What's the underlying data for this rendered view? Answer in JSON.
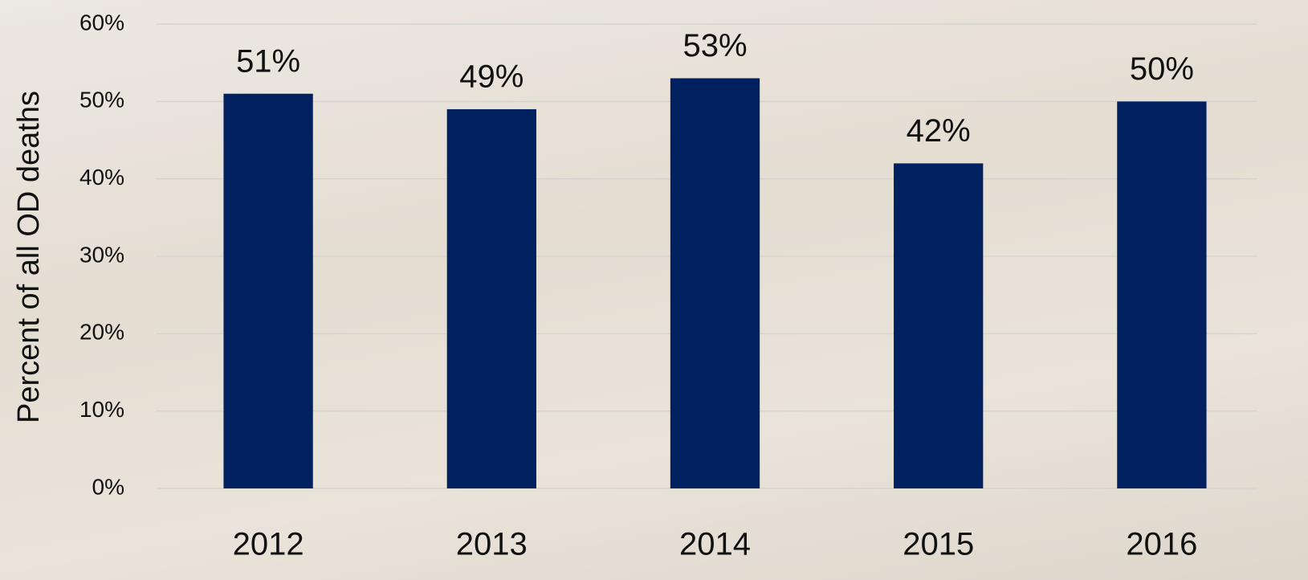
{
  "chart_data": {
    "type": "bar",
    "y_axis_label": "Percent of all OD deaths",
    "categories": [
      "2012",
      "2013",
      "2014",
      "2015",
      "2016"
    ],
    "values": [
      51,
      49,
      53,
      42,
      50
    ],
    "value_labels": [
      "51%",
      "49%",
      "53%",
      "42%",
      "50%"
    ],
    "color": "#002060",
    "ylim": [
      0,
      60
    ],
    "yticks": [
      {
        "value": 0,
        "label": "0%"
      },
      {
        "value": 10,
        "label": "10%"
      },
      {
        "value": 20,
        "label": "20%"
      },
      {
        "value": 30,
        "label": "30%"
      },
      {
        "value": 40,
        "label": "40%"
      },
      {
        "value": 50,
        "label": "50%"
      },
      {
        "value": 60,
        "label": "60%"
      }
    ],
    "grid": true
  }
}
